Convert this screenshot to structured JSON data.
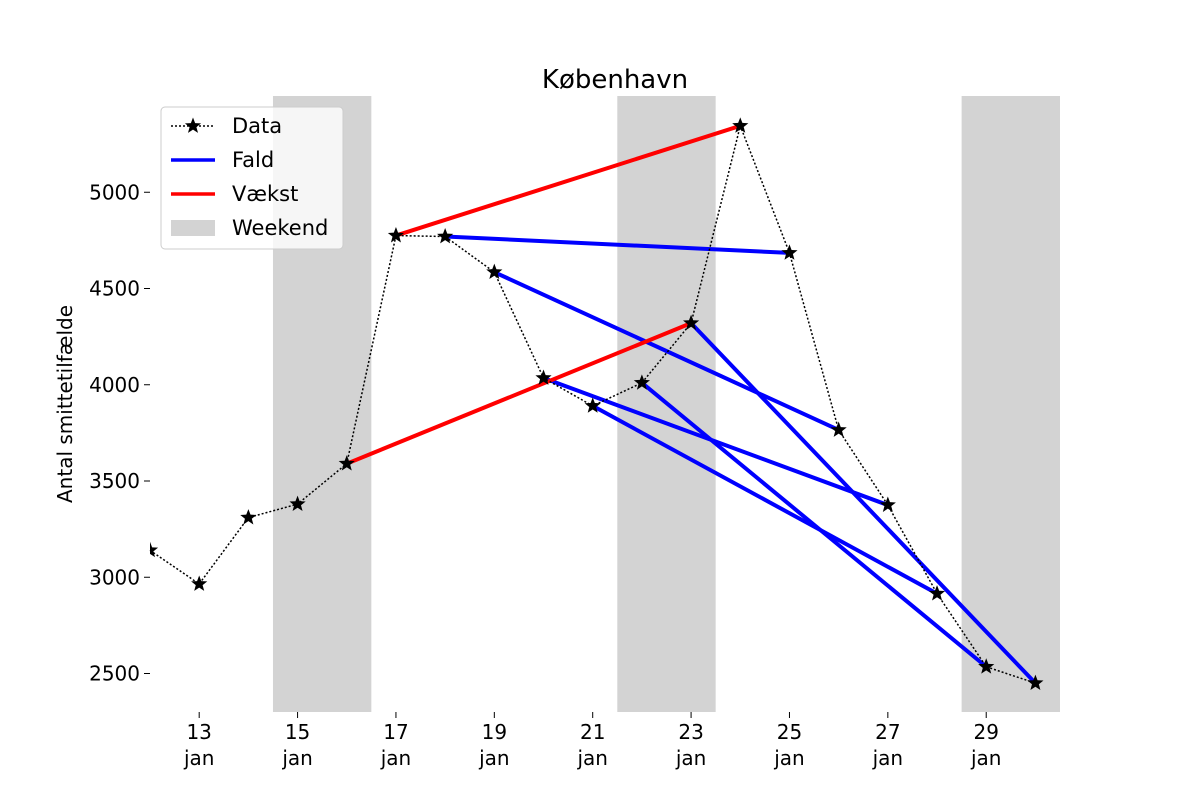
{
  "chart_data": {
    "type": "line",
    "title": "København",
    "ylabel": "Antal smittetilfælde",
    "xlabel": "",
    "x_unit": "jan day",
    "xlim": [
      12,
      30.5
    ],
    "ylim": [
      2300,
      5500
    ],
    "x_ticks": [
      {
        "day": 13,
        "line1": "13",
        "line2": "jan"
      },
      {
        "day": 15,
        "line1": "15",
        "line2": "jan"
      },
      {
        "day": 17,
        "line1": "17",
        "line2": "jan"
      },
      {
        "day": 19,
        "line1": "19",
        "line2": "jan"
      },
      {
        "day": 21,
        "line1": "21",
        "line2": "jan"
      },
      {
        "day": 23,
        "line1": "23",
        "line2": "jan"
      },
      {
        "day": 25,
        "line1": "25",
        "line2": "jan"
      },
      {
        "day": 27,
        "line1": "27",
        "line2": "jan"
      },
      {
        "day": 29,
        "line1": "29",
        "line2": "jan"
      }
    ],
    "y_ticks": [
      2500,
      3000,
      3500,
      4000,
      4500,
      5000
    ],
    "grid": false,
    "legend_position": "top-left",
    "weekends": [
      [
        14.5,
        16.5
      ],
      [
        21.5,
        23.5
      ],
      [
        28.5,
        30.5
      ]
    ],
    "data": {
      "name": "Data",
      "x": [
        12,
        13,
        14,
        15,
        16,
        17,
        18,
        19,
        20,
        21,
        22,
        23,
        24,
        25,
        26,
        27,
        28,
        29,
        30
      ],
      "y": [
        3140,
        2965,
        3310,
        3380,
        3590,
        4775,
        4770,
        4585,
        4035,
        3890,
        4010,
        4320,
        5345,
        4685,
        3765,
        3375,
        2915,
        2535,
        2450
      ]
    },
    "fald": [
      [
        [
          18,
          4770
        ],
        [
          25,
          4685
        ]
      ],
      [
        [
          19,
          4585
        ],
        [
          26,
          3765
        ]
      ],
      [
        [
          20,
          4035
        ],
        [
          27,
          3375
        ]
      ],
      [
        [
          21,
          3890
        ],
        [
          28,
          2915
        ]
      ],
      [
        [
          22,
          4010
        ],
        [
          29,
          2535
        ]
      ],
      [
        [
          23,
          4320
        ],
        [
          30,
          2450
        ]
      ]
    ],
    "vaekst": [
      [
        [
          16,
          3590
        ],
        [
          23,
          4320
        ]
      ],
      [
        [
          17,
          4775
        ],
        [
          24,
          5345
        ]
      ]
    ],
    "legend": {
      "data": "Data",
      "fald": "Fald",
      "vaekst": "Vækst",
      "weekend": "Weekend"
    },
    "colors": {
      "fald": "#0000ff",
      "vaekst": "#ff0000",
      "weekend": "#d3d3d3",
      "data": "#000000"
    }
  }
}
